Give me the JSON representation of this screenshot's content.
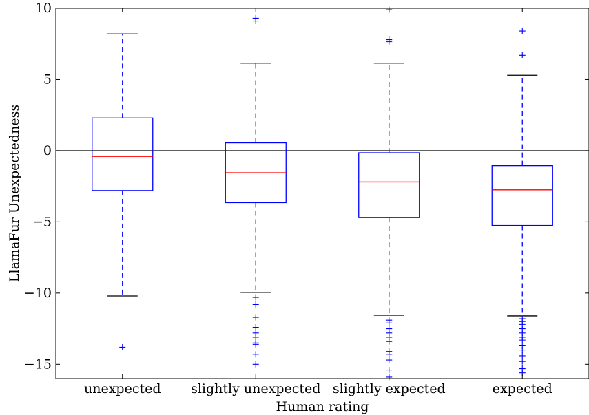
{
  "chart_data": {
    "type": "box",
    "title": "",
    "xlabel": "Human rating",
    "ylabel": "LlamaFur Unexpectedness",
    "ylim": [
      -16,
      10
    ],
    "yticks": [
      -15,
      -10,
      -5,
      0,
      5,
      10
    ],
    "ytick_labels": [
      "−15",
      "−10",
      "−5",
      "0",
      "5",
      "10"
    ],
    "zero_line": 0,
    "grid": false,
    "colors": {
      "box": "#0000ff",
      "median": "#ff0000",
      "cap": "#000000",
      "whisker": "#0000ff",
      "flier": "#0000ff"
    },
    "categories": [
      "unexpected",
      "slightly unexpected",
      "slightly expected",
      "expected"
    ],
    "boxes": [
      {
        "whislo": -10.2,
        "q1": -2.8,
        "med": -0.4,
        "q3": 2.3,
        "whishi": 8.2,
        "fliers": [
          -13.8
        ]
      },
      {
        "whislo": -9.95,
        "q1": -3.65,
        "med": -1.55,
        "q3": 0.55,
        "whishi": 6.15,
        "fliers": [
          9.1,
          9.3,
          -10.3,
          -10.8,
          -11.7,
          -12.4,
          -12.8,
          -13.1,
          -13.5,
          -13.6,
          -14.3,
          -15.0
        ]
      },
      {
        "whislo": -11.55,
        "q1": -4.7,
        "med": -2.2,
        "q3": -0.15,
        "whishi": 6.15,
        "fliers": [
          9.9,
          7.65,
          7.8,
          -11.9,
          -12.1,
          -12.5,
          -12.8,
          -13.1,
          -13.4,
          -14.1,
          -14.3,
          -14.7,
          -15.4,
          -15.9
        ]
      },
      {
        "whislo": -11.6,
        "q1": -5.25,
        "med": -2.75,
        "q3": -1.05,
        "whishi": 5.3,
        "fliers": [
          8.4,
          6.7,
          -11.8,
          -12.0,
          -12.2,
          -12.5,
          -12.8,
          -13.1,
          -13.3,
          -13.7,
          -14.0,
          -14.4,
          -14.8,
          -15.3,
          -15.6
        ]
      }
    ]
  }
}
